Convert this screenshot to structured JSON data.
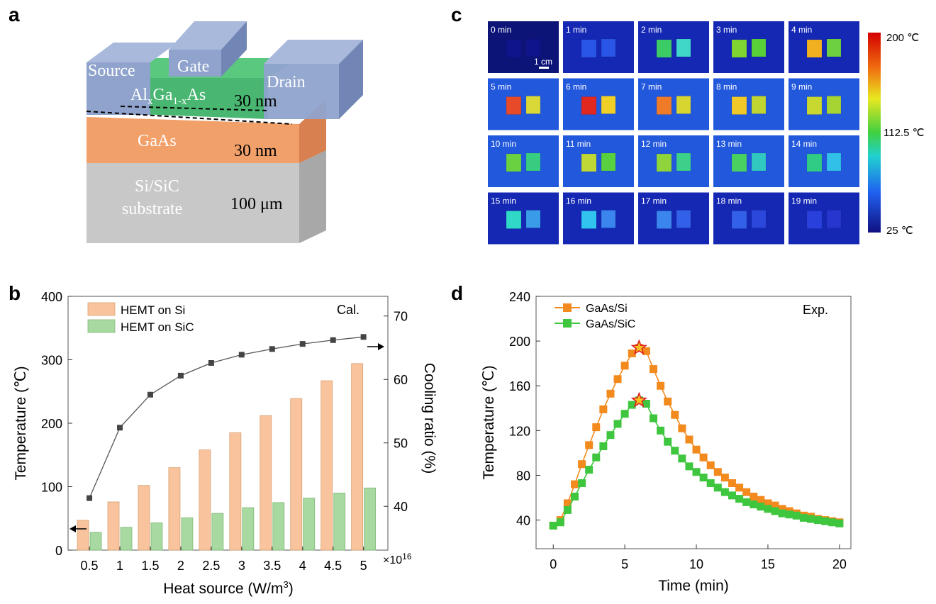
{
  "panels": {
    "a": "a",
    "b": "b",
    "c": "c",
    "d": "d"
  },
  "device": {
    "source": "Source",
    "gate": "Gate",
    "drain": "Drain",
    "barrier_al": "Al",
    "barrier_sub1": "x",
    "barrier_ga": "Ga",
    "barrier_sub2": "1-x",
    "barrier_as": "As",
    "barrier_thickness": "30 nm",
    "channel": "GaAs",
    "channel_thickness": "30 nm",
    "substrate_line1": "Si/SiC",
    "substrate_line2": "substrate",
    "substrate_thickness": "100 μm",
    "colors": {
      "contact": "#8fa3cc",
      "barrier": "#3fb36a",
      "channel": "#f2a06a",
      "substrate": "#c9c9c9"
    }
  },
  "thermal": {
    "frames": [
      "0 min",
      "1 min",
      "2 min",
      "3 min",
      "4 min",
      "5 min",
      "6 min",
      "7 min",
      "8 min",
      "9 min",
      "10 min",
      "11 min",
      "12 min",
      "13 min",
      "14 min",
      "15 min",
      "16 min",
      "17 min",
      "18 min",
      "19 min"
    ],
    "left_sample_colors": [
      "#10148c",
      "#2a56e8",
      "#3ccc66",
      "#7fd430",
      "#f0b020",
      "#e64a28",
      "#e02820",
      "#ef7a28",
      "#f0c828",
      "#c9d830",
      "#6ad240",
      "#c0d836",
      "#8ed43a",
      "#48d060",
      "#30cc86",
      "#30d8c8",
      "#30c4ee",
      "#3a86ee",
      "#3260e8",
      "#2a40dc"
    ],
    "right_sample_colors": [
      "#10148c",
      "#2a56e8",
      "#40d6c8",
      "#58d038",
      "#6cd040",
      "#d8d838",
      "#f0d028",
      "#d8d430",
      "#c0d432",
      "#a6d432",
      "#38cc80",
      "#58d040",
      "#3cd08a",
      "#30c8c0",
      "#30c0e8",
      "#3a9ce8",
      "#3a86ee",
      "#3260e8",
      "#2c48dc",
      "#2836d0"
    ],
    "scale_bar": "1 cm",
    "colorbar": {
      "max": "200 ℃",
      "mid": "112.5 ℃",
      "min": "25 ℃"
    }
  },
  "chart_data": [
    {
      "type": "bar",
      "panel": "b",
      "title": "",
      "annotation": "Cal.",
      "categories": [
        "0.5",
        "1",
        "1.5",
        "2",
        "2.5",
        "3",
        "3.5",
        "4",
        "4.5",
        "5"
      ],
      "x_multiplier": "×10",
      "x_multiplier_exp": "16",
      "xlabel": "Heat source (W/m",
      "xlabel_sup": "3",
      "xlabel_end": ")",
      "ylabel": "Temperature (℃)",
      "ylim": [
        0,
        400
      ],
      "yticks": [
        0,
        100,
        200,
        300,
        400
      ],
      "series": [
        {
          "name": "HEMT on Si",
          "color": "#f9c49d",
          "values": [
            47,
            76,
            102,
            130,
            158,
            185,
            212,
            239,
            267,
            294
          ]
        },
        {
          "name": "HEMT on SiC",
          "color": "#a8d9a0",
          "values": [
            28,
            36,
            43,
            51,
            58,
            67,
            75,
            82,
            90,
            98
          ]
        }
      ],
      "y2label": "Cooling ratio (%)",
      "y2lim": [
        33.1,
        73.1
      ],
      "y2ticks": [
        40,
        50,
        60,
        70
      ],
      "line": {
        "name": "Cooling ratio",
        "values": [
          41.3,
          52.4,
          57.6,
          60.6,
          62.6,
          63.9,
          64.8,
          65.6,
          66.2,
          66.7
        ]
      }
    },
    {
      "type": "line",
      "panel": "d",
      "annotation": "Exp.",
      "xlabel": "Time (min)",
      "ylabel": "Temperature (℃)",
      "xlim": [
        -1.2,
        20.8
      ],
      "xticks": [
        0,
        5,
        10,
        15,
        20
      ],
      "ylim": [
        14.4,
        240
      ],
      "yticks": [
        40,
        80,
        120,
        160,
        200,
        240
      ],
      "x": [
        0,
        0.5,
        1,
        1.5,
        2,
        2.5,
        3,
        3.5,
        4,
        4.5,
        5,
        5.5,
        6,
        6.5,
        7,
        7.5,
        8,
        8.5,
        9,
        9.5,
        10,
        10.5,
        11,
        11.5,
        12,
        12.5,
        13,
        13.5,
        14,
        14.5,
        15,
        15.5,
        16,
        16.5,
        17,
        17.5,
        18,
        18.5,
        19,
        19.5,
        20
      ],
      "series": [
        {
          "name": "GaAs/Si",
          "color": "#f28a1e",
          "values": [
            35,
            40,
            55,
            72,
            90,
            107,
            123,
            139,
            153,
            166,
            178,
            189,
            194,
            191,
            175,
            160,
            146,
            134,
            122,
            112,
            103,
            96,
            89,
            83,
            78,
            73,
            69,
            65,
            61,
            58,
            55,
            53,
            50,
            48,
            46,
            44,
            43,
            41,
            40,
            39,
            38
          ]
        },
        {
          "name": "GaAs/SiC",
          "color": "#3ec63e",
          "values": [
            35,
            38,
            49,
            61,
            73,
            85,
            96,
            106,
            116,
            126,
            135,
            143,
            147,
            144,
            131,
            120,
            110,
            102,
            95,
            88,
            83,
            78,
            73,
            69,
            65,
            62,
            59,
            56,
            54,
            52,
            50,
            48,
            46,
            45,
            44,
            42,
            41,
            40,
            39,
            38,
            37
          ]
        }
      ],
      "peaks": [
        {
          "x": 6,
          "y": 194
        },
        {
          "x": 6,
          "y": 147
        }
      ]
    }
  ]
}
